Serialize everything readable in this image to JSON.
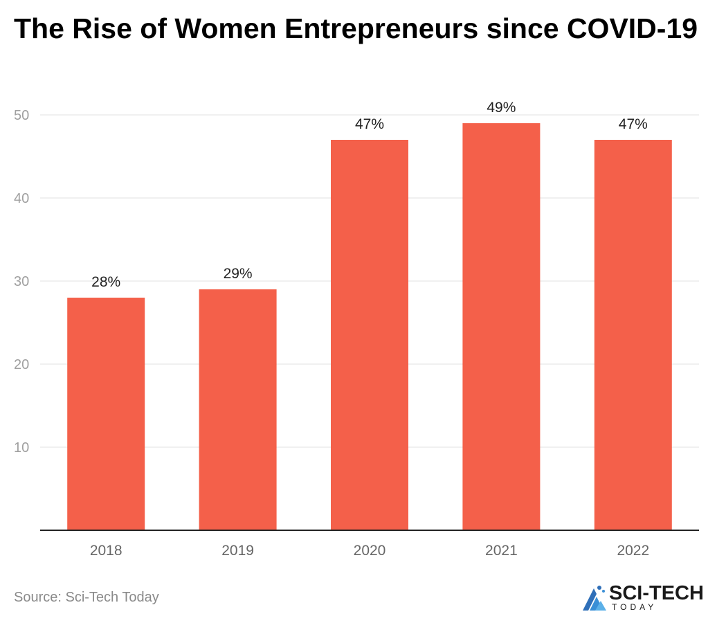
{
  "header": {
    "title": "The Rise of Women Entrepreneurs since COVID-19"
  },
  "footer": {
    "source": "Source: Sci-Tech Today",
    "brand_name": "SCI-TECH",
    "brand_sub": "TODAY",
    "brand_icon": "sci-tech-logo-icon"
  },
  "colors": {
    "bar": "#f4604a",
    "grid": "#e0e0e0",
    "axis": "#222222",
    "tick_label": "#a0a0a0",
    "category_label": "#666666",
    "data_label": "#222222"
  },
  "chart_data": {
    "type": "bar",
    "title": "The Rise of Women Entrepreneurs since COVID-19",
    "xlabel": "",
    "ylabel": "",
    "categories": [
      "2018",
      "2019",
      "2020",
      "2021",
      "2022"
    ],
    "values": [
      28,
      29,
      47,
      49,
      47
    ],
    "data_labels": [
      "28%",
      "29%",
      "47%",
      "49%",
      "47%"
    ],
    "ylim": [
      0,
      50
    ],
    "yticks": [
      10,
      20,
      30,
      40,
      50
    ],
    "grid": true,
    "legend": "none"
  }
}
